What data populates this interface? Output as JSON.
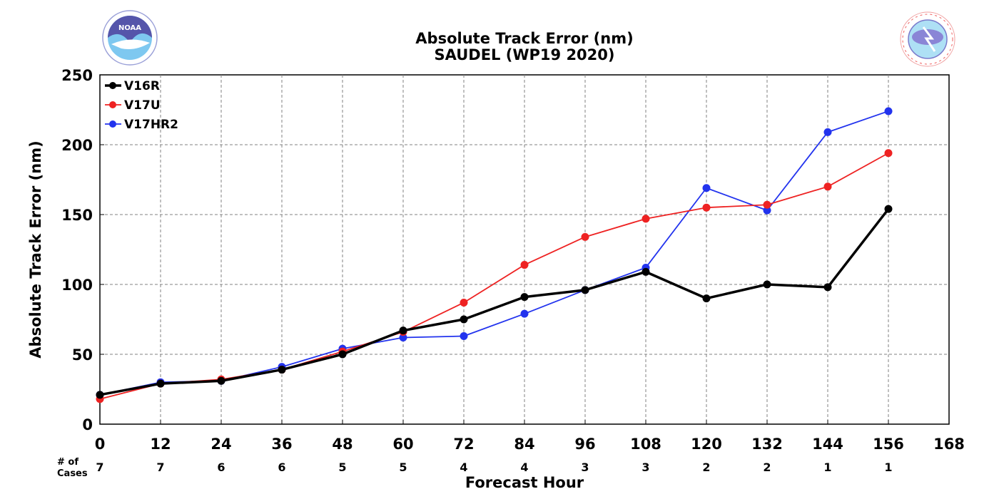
{
  "chart_data": {
    "type": "line",
    "title": "Absolute Track Error (nm)",
    "subtitle": "SAUDEL (WP19 2020)",
    "xlabel": "Forecast Hour",
    "ylabel": "Absolute Track Error (nm)",
    "xlim": [
      0,
      168
    ],
    "ylim": [
      0,
      250
    ],
    "x_ticks": [
      0,
      12,
      24,
      36,
      48,
      60,
      72,
      84,
      96,
      108,
      120,
      132,
      144,
      156,
      168
    ],
    "y_ticks": [
      0,
      50,
      100,
      150,
      200,
      250
    ],
    "grid": true,
    "legend_position": "top-left",
    "x": [
      0,
      12,
      24,
      36,
      48,
      60,
      72,
      84,
      96,
      108,
      120,
      132,
      144,
      156
    ],
    "series": [
      {
        "name": "V16R",
        "color": "#000000",
        "values": [
          21,
          29,
          31,
          39,
          50,
          67,
          75,
          91,
          96,
          109,
          90,
          100,
          98,
          154
        ]
      },
      {
        "name": "V17U",
        "color": "#ee2222",
        "values": [
          18,
          29,
          32,
          39,
          52,
          66,
          87,
          114,
          134,
          147,
          155,
          157,
          170,
          194
        ]
      },
      {
        "name": "V17HR2",
        "color": "#2233ee",
        "values": [
          21,
          30,
          31,
          41,
          54,
          62,
          63,
          79,
          96,
          112,
          169,
          153,
          209,
          224
        ]
      }
    ],
    "cases_label_line1": "# of",
    "cases_label_line2": "Cases",
    "cases": [
      7,
      7,
      6,
      6,
      5,
      5,
      4,
      4,
      3,
      3,
      2,
      2,
      1,
      1
    ]
  },
  "logos": {
    "left": {
      "icon": "noaa-logo-icon",
      "text": "NOAA"
    },
    "right": {
      "icon": "nws-logo-icon",
      "text": "NATIONAL WEATHER SERVICE"
    }
  }
}
